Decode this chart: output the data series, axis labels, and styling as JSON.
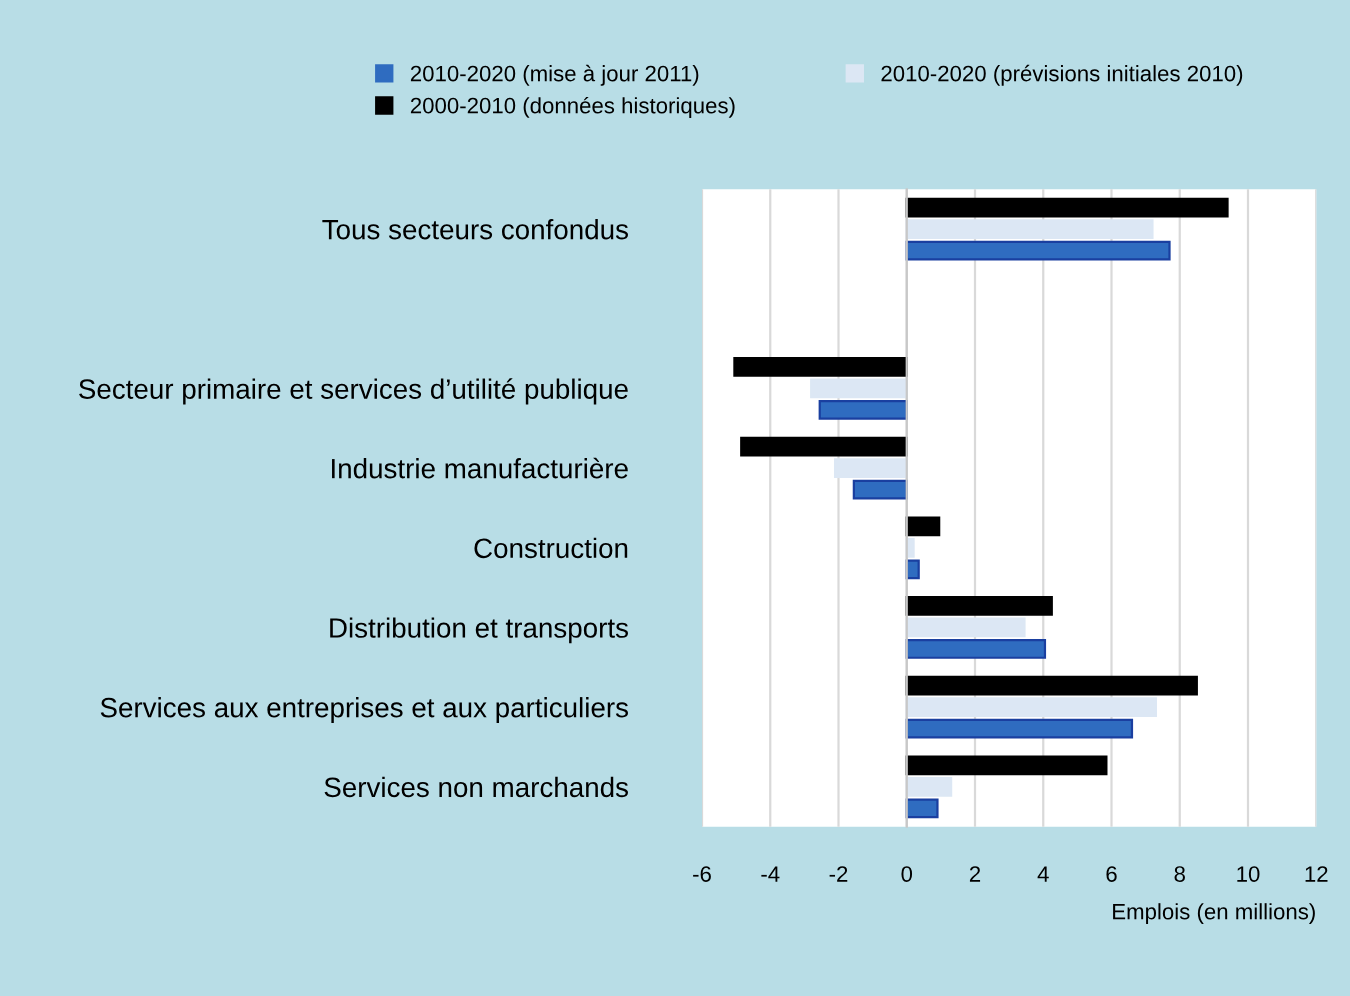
{
  "chart_data": {
    "type": "bar",
    "orientation": "horizontal",
    "categories": [
      "Tous secteurs confondus",
      null,
      "Secteur primaire et services d’utilité publique",
      "Industrie manufacturière",
      "Construction",
      "Distribution et transports",
      "Services aux entreprises et aux particuliers",
      "Services non marchands"
    ],
    "series": [
      {
        "name": "2010-2020 (mise à jour 2011)",
        "color": "#2f6cc0",
        "values": [
          7.7,
          null,
          -2.55,
          -1.55,
          0.35,
          4.05,
          6.6,
          0.9
        ]
      },
      {
        "name": "2010-2020 (prévisions initiales 2010)",
        "color": "#dce7f4",
        "values": [
          7.2,
          null,
          -2.8,
          -2.1,
          0.2,
          3.45,
          7.3,
          1.3
        ]
      },
      {
        "name": "2000-2010 (données historiques)",
        "color": "#000000",
        "values": [
          9.4,
          null,
          -5.05,
          -4.85,
          0.95,
          4.25,
          8.5,
          5.85
        ]
      }
    ],
    "xlabel": "Emplois (en millions)",
    "xlim": [
      -6,
      12
    ],
    "xticks": [
      -6,
      -4,
      -2,
      0,
      2,
      4,
      6,
      8,
      10,
      12
    ],
    "grid": "x",
    "legend": "top"
  }
}
